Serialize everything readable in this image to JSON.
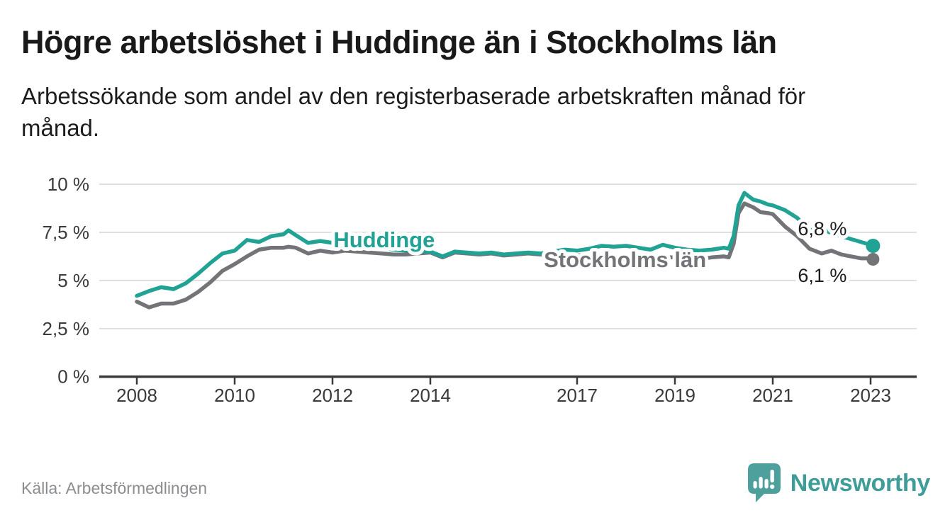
{
  "header": {
    "title": "Högre arbetslöshet i Huddinge än i Stockholms län",
    "subtitle_line1": "Arbetssökande som andel av den registerbaserade arbetskraften månad för",
    "subtitle_line2": "månad."
  },
  "footer": {
    "source": "Källa: Arbetsförmedlingen",
    "brand": "Newsworthy",
    "logo_icon": "bar-chart-speech-bubble-icon"
  },
  "colors": {
    "huddinge": "#20a294",
    "stockholm": "#737477",
    "gridline": "#dcdcdc",
    "axis": "#3a3a3c",
    "tick_text": "#3a3a3c",
    "end_label_text": "#1c1c1c",
    "title_text": "#191919",
    "muted_text": "#8b8e91",
    "brand_teal": "#4da09b",
    "brand_wordmark": "#3e9c99"
  },
  "chart_data": {
    "type": "line",
    "title": "Högre arbetslöshet i Huddinge än i Stockholms län",
    "subtitle": "Arbetssökande som andel av den registerbaserade arbetskraften månad för månad.",
    "xlabel": "",
    "ylabel": "",
    "unit": "%",
    "frequency": "monthly",
    "grid": "horizontal",
    "legend_position": "inline-labels",
    "ylim": [
      0,
      10
    ],
    "xlim": [
      2007.2,
      2023.9
    ],
    "y_ticks": [
      {
        "value": 0,
        "label": "0 %"
      },
      {
        "value": 2.5,
        "label": "2,5 %"
      },
      {
        "value": 5,
        "label": "5 %"
      },
      {
        "value": 7.5,
        "label": "7,5 %"
      },
      {
        "value": 10,
        "label": "10 %"
      }
    ],
    "x_ticks": [
      {
        "year": 2008,
        "label": "2008"
      },
      {
        "year": 2010,
        "label": "2010"
      },
      {
        "year": 2012,
        "label": "2012"
      },
      {
        "year": 2014,
        "label": "2014"
      },
      {
        "year": 2017,
        "label": "2017"
      },
      {
        "year": 2019,
        "label": "2019"
      },
      {
        "year": 2021,
        "label": "2021"
      },
      {
        "year": 2023,
        "label": "2023"
      }
    ],
    "x": [
      2008.0,
      2008.25,
      2008.5,
      2008.75,
      2009.0,
      2009.25,
      2009.5,
      2009.75,
      2010.0,
      2010.25,
      2010.5,
      2010.75,
      2011.0,
      2011.1,
      2011.25,
      2011.5,
      2011.75,
      2012.0,
      2012.25,
      2012.5,
      2012.75,
      2013.0,
      2013.25,
      2013.5,
      2013.75,
      2014.0,
      2014.25,
      2014.5,
      2014.75,
      2015.0,
      2015.25,
      2015.5,
      2015.75,
      2016.0,
      2016.25,
      2016.5,
      2016.75,
      2017.0,
      2017.25,
      2017.5,
      2017.75,
      2018.0,
      2018.25,
      2018.5,
      2018.75,
      2019.0,
      2019.25,
      2019.5,
      2019.75,
      2020.0,
      2020.1,
      2020.2,
      2020.3,
      2020.42,
      2020.6,
      2020.75,
      2020.9,
      2021.0,
      2021.25,
      2021.5,
      2021.75,
      2022.0,
      2022.2,
      2022.4,
      2022.6,
      2022.8,
      2023.0,
      2023.05
    ],
    "series": [
      {
        "id": "huddinge",
        "name": "Huddinge",
        "color": "#20a294",
        "end_label": "6,8 %",
        "end_label_position": "above",
        "end_value": 6.8,
        "inline_label": {
          "x_year": 2012.02,
          "y_pct": 6.72
        },
        "values": [
          4.2,
          4.45,
          4.65,
          4.55,
          4.85,
          5.35,
          5.9,
          6.4,
          6.55,
          7.1,
          7.0,
          7.3,
          7.4,
          7.6,
          7.35,
          6.95,
          7.05,
          6.95,
          7.0,
          6.9,
          6.8,
          6.7,
          6.6,
          6.55,
          6.5,
          6.5,
          6.25,
          6.5,
          6.45,
          6.4,
          6.45,
          6.35,
          6.4,
          6.45,
          6.4,
          6.5,
          6.6,
          6.55,
          6.65,
          6.8,
          6.75,
          6.8,
          6.7,
          6.6,
          6.85,
          6.7,
          6.6,
          6.55,
          6.6,
          6.7,
          6.65,
          7.3,
          8.9,
          9.55,
          9.2,
          9.1,
          8.95,
          8.9,
          8.65,
          8.25,
          7.6,
          7.7,
          7.45,
          7.3,
          7.15,
          7.0,
          6.85,
          6.8
        ]
      },
      {
        "id": "stockholms-lan",
        "name": "Stockholms län",
        "color": "#737477",
        "end_label": "6,1 %",
        "end_label_position": "below",
        "end_value": 6.1,
        "inline_label": {
          "x_year": 2016.32,
          "y_pct": 5.7
        },
        "values": [
          3.9,
          3.6,
          3.8,
          3.8,
          4.0,
          4.4,
          4.9,
          5.5,
          5.85,
          6.25,
          6.6,
          6.7,
          6.7,
          6.75,
          6.7,
          6.4,
          6.55,
          6.45,
          6.55,
          6.5,
          6.45,
          6.4,
          6.35,
          6.35,
          6.4,
          6.45,
          6.2,
          6.45,
          6.4,
          6.35,
          6.4,
          6.3,
          6.35,
          6.4,
          6.35,
          6.3,
          6.3,
          6.3,
          6.35,
          6.3,
          6.25,
          6.3,
          6.35,
          6.25,
          6.2,
          6.2,
          6.15,
          6.1,
          6.2,
          6.25,
          6.2,
          6.9,
          8.5,
          9.0,
          8.8,
          8.55,
          8.5,
          8.45,
          7.8,
          7.3,
          6.65,
          6.4,
          6.55,
          6.35,
          6.25,
          6.15,
          6.15,
          6.1
        ]
      }
    ]
  }
}
